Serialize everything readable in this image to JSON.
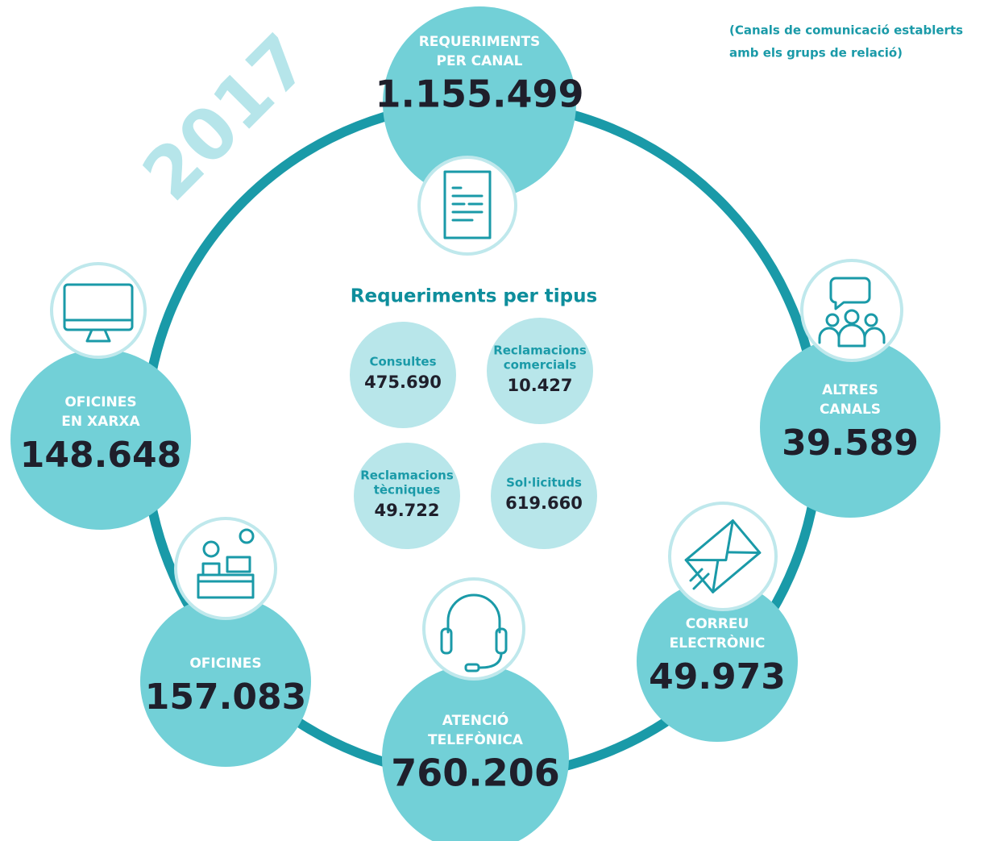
{
  "year": "2017",
  "note": [
    "(Canals de comunicació establerts",
    "amb els grups de relació)"
  ],
  "types_title": "Requeriments per tipus",
  "channels": [
    {
      "label": [
        "REQUERIMENTS",
        "PER CANAL"
      ],
      "value": "1.155.499"
    },
    {
      "label": [
        "OFICINES",
        "EN XARXA"
      ],
      "value": "148.648"
    },
    {
      "label": [
        "ALTRES",
        "CANALS"
      ],
      "value": "39.589"
    },
    {
      "label": [
        "OFICINES"
      ],
      "value": "157.083"
    },
    {
      "label": [
        "ATENCIÓ",
        "TELEFÒNICA"
      ],
      "value": "760.206"
    },
    {
      "label": [
        "CORREU",
        "ELECTRÒNIC"
      ],
      "value": "49.973"
    }
  ],
  "types": [
    {
      "label": [
        "Consultes"
      ],
      "value": "475.690"
    },
    {
      "label": [
        "Reclamacions",
        "comercials"
      ],
      "value": "10.427"
    },
    {
      "label": [
        "Reclamacions",
        "tècniques"
      ],
      "value": "49.722"
    },
    {
      "label": [
        "Sol·licituds"
      ],
      "value": "619.660"
    }
  ]
}
